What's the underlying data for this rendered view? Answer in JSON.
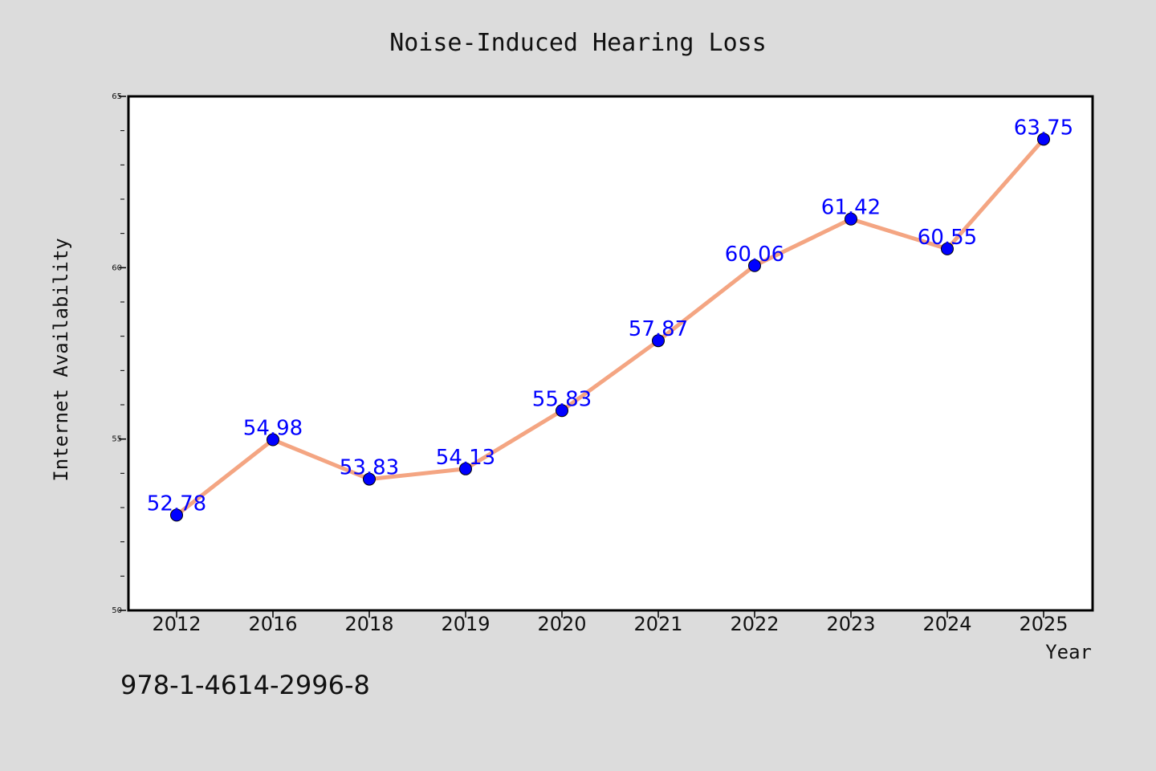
{
  "chart_data": {
    "type": "line",
    "title": "Noise-Induced Hearing Loss",
    "xlabel": "Year",
    "ylabel": "Internet Availability",
    "categories": [
      "2012",
      "2016",
      "2018",
      "2019",
      "2020",
      "2021",
      "2022",
      "2023",
      "2024",
      "2025"
    ],
    "series": [
      {
        "values": [
          52.78,
          54.98,
          53.83,
          54.13,
          55.83,
          57.87,
          60.06,
          61.42,
          60.55,
          63.75
        ]
      }
    ],
    "data_labels": [
      "52.78",
      "54.98",
      "53.83",
      "54.13",
      "55.83",
      "57.87",
      "60.06",
      "61.42",
      "60.55",
      "63.75"
    ],
    "ylim": [
      50,
      65
    ],
    "yticks": [
      "50",
      "55",
      "60",
      "65"
    ],
    "grid": false,
    "legend": "none",
    "colors": {
      "background": "#dcdcdc",
      "plot_background": "#ffffff",
      "line": "#f4a582",
      "marker": "#0000ff",
      "data_label": "#0000ff"
    }
  },
  "footer": {
    "isbn": "978-1-4614-2996-8"
  }
}
